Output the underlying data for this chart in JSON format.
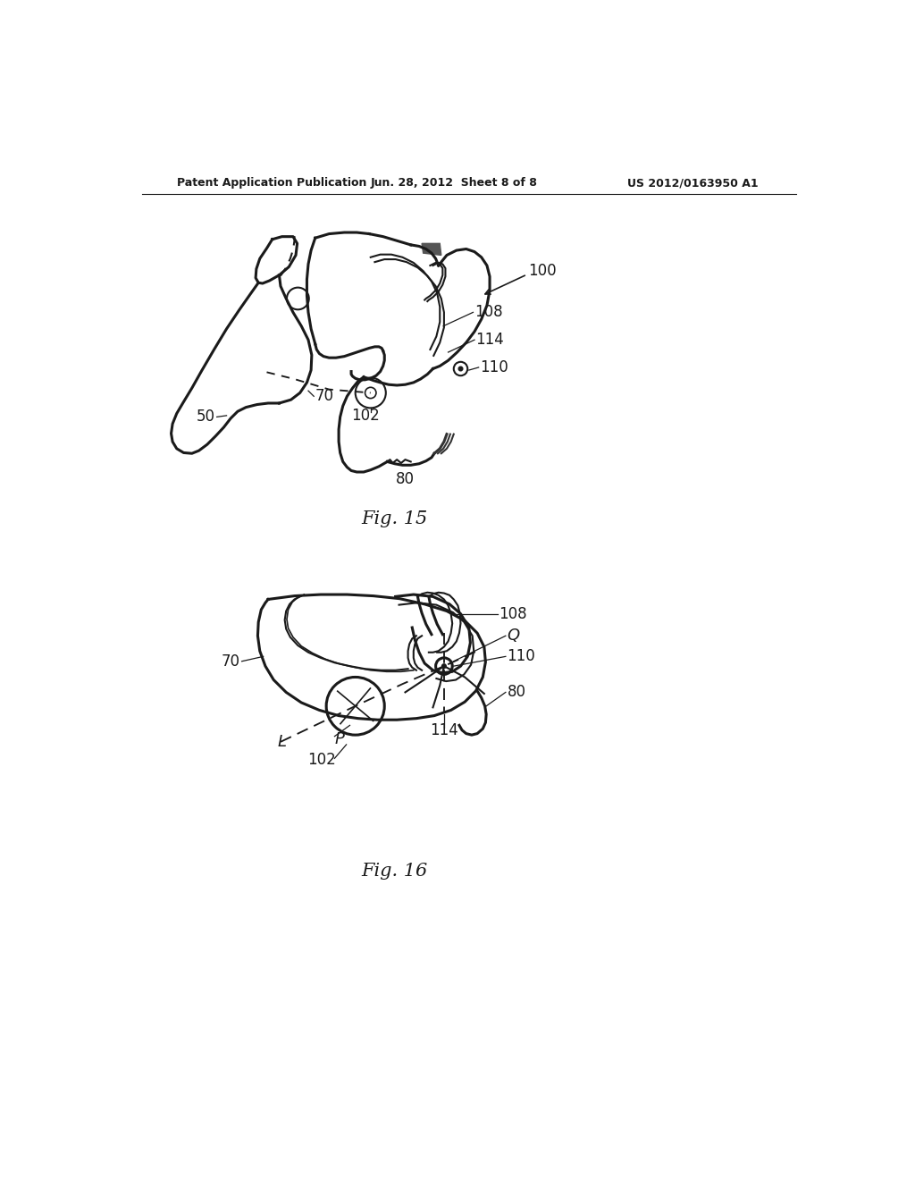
{
  "bg_color": "#ffffff",
  "header_left": "Patent Application Publication",
  "header_center": "Jun. 28, 2012  Sheet 8 of 8",
  "header_right": "US 2012/0163950 A1",
  "fig15_caption": "Fig. 15",
  "fig16_caption": "Fig. 16",
  "line_color": "#1a1a1a",
  "text_color": "#1a1a1a",
  "dark_fill": "#555555"
}
